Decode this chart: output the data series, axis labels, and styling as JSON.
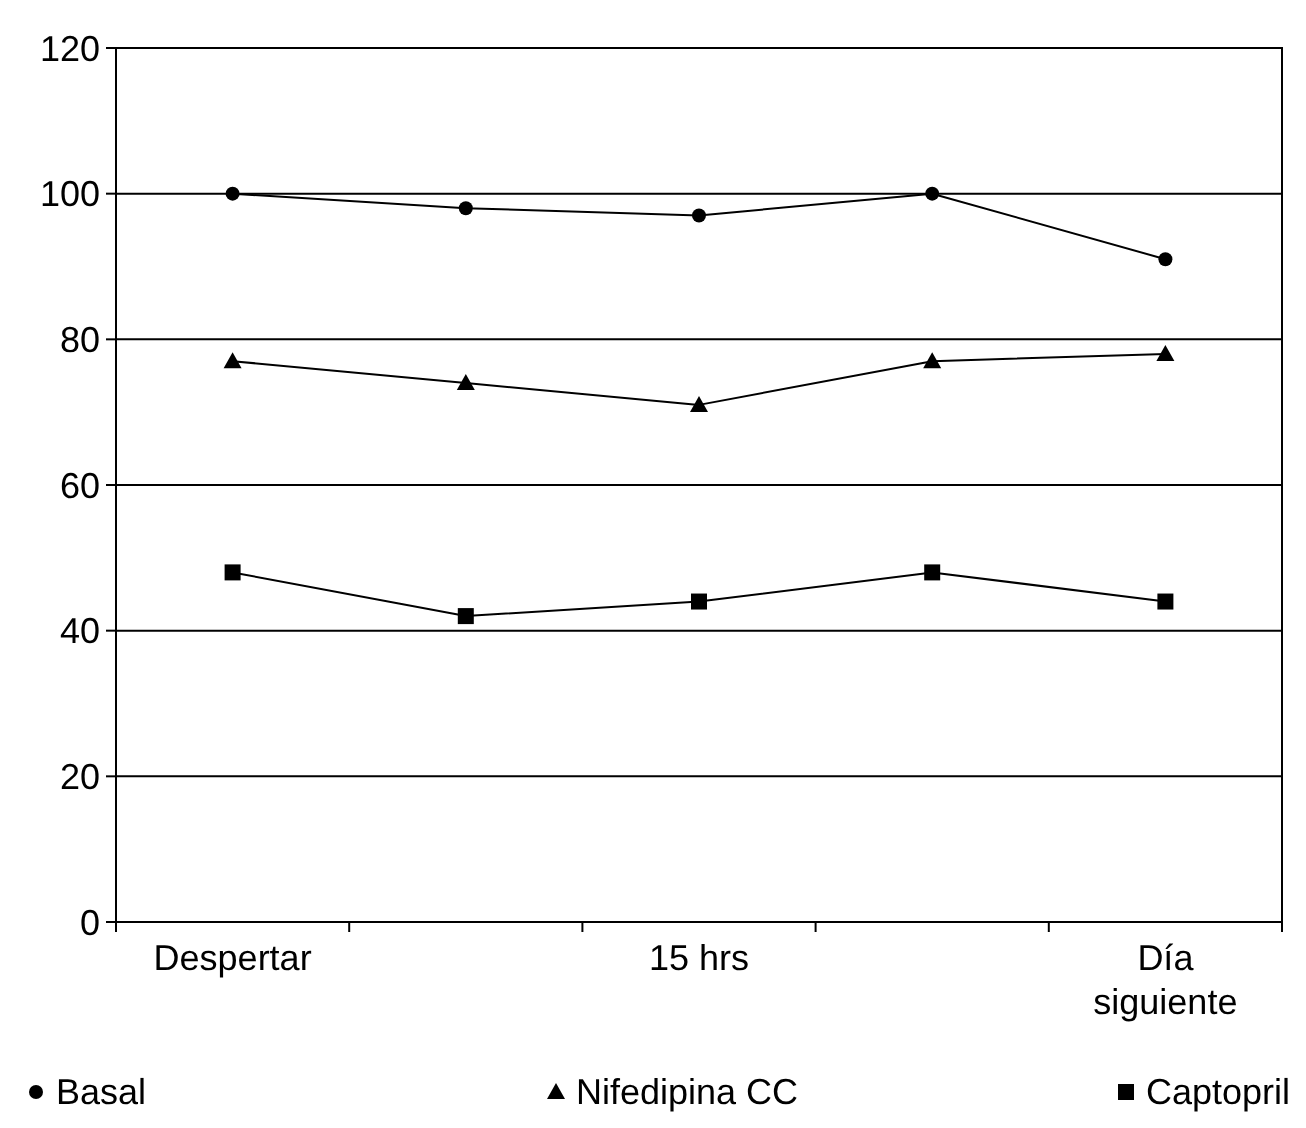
{
  "chart_data": {
    "type": "line",
    "categories": [
      "Despertar",
      null,
      "15 hrs",
      null,
      "Día siguiente"
    ],
    "series": [
      {
        "name": "Basal",
        "color": "#000000",
        "marker": "circle",
        "values": [
          100,
          98,
          97,
          100,
          91
        ]
      },
      {
        "name": "Nifedipina CC",
        "color": "#000000",
        "marker": "triangle",
        "values": [
          77,
          74,
          71,
          77,
          78
        ]
      },
      {
        "name": "Captopril",
        "color": "#000000",
        "marker": "square",
        "values": [
          48,
          42,
          44,
          48,
          44
        ]
      }
    ],
    "ylim": [
      0,
      120
    ],
    "yticks": [
      0,
      20,
      40,
      60,
      80,
      100,
      120
    ],
    "grid": "y",
    "legend": "bottom",
    "line_style": "solid"
  }
}
